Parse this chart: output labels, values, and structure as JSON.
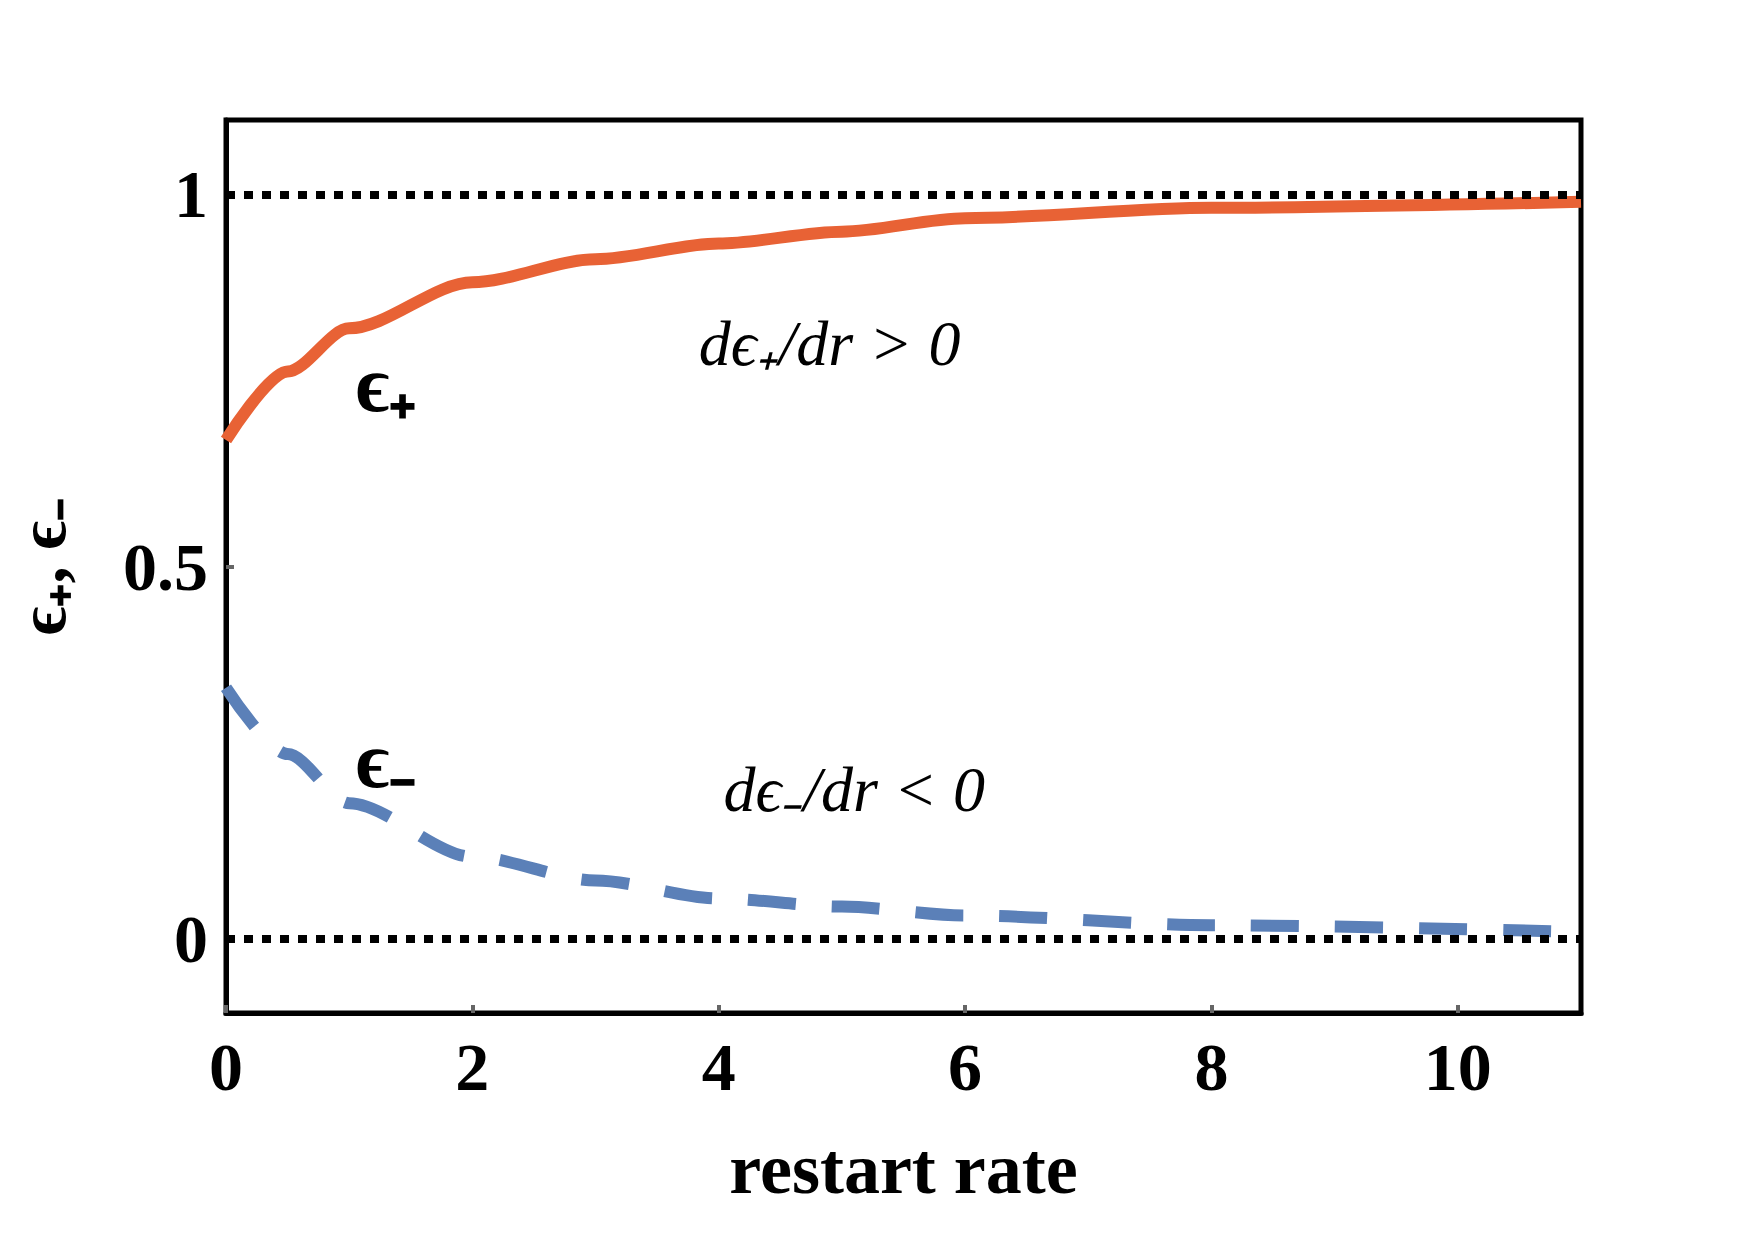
{
  "chart_data": {
    "type": "line",
    "xlabel": "restart rate",
    "ylabel": "ϵ₊, ϵ₋",
    "x": [
      0,
      0.5,
      1,
      2,
      3,
      4,
      5,
      6,
      8,
      11
    ],
    "series": [
      {
        "name": "ϵ₊",
        "color": "#e86235",
        "line_style": "solid",
        "values": [
          0.67,
          0.762,
          0.82,
          0.882,
          0.913,
          0.934,
          0.95,
          0.968,
          0.982,
          0.99
        ]
      },
      {
        "name": "ϵ₋",
        "color": "#5b80b8",
        "line_style": "dashed",
        "values": [
          0.337,
          0.248,
          0.182,
          0.11,
          0.078,
          0.054,
          0.043,
          0.031,
          0.018,
          0.009
        ]
      }
    ],
    "xlim": [
      0,
      11
    ],
    "xticks": [
      0,
      2,
      4,
      6,
      8,
      10
    ],
    "ylim": [
      -0.1,
      1.1
    ],
    "yticks": [
      0,
      0.5,
      1
    ],
    "ref_lines": [
      {
        "axis": "y",
        "value": 1,
        "color": "#000000",
        "line_style": "dotted"
      },
      {
        "axis": "y",
        "value": 0,
        "color": "#000000",
        "line_style": "dotted"
      }
    ],
    "annotations": [
      "dϵ₊/dr > 0",
      "dϵ₋/dr < 0"
    ],
    "grid": false,
    "legend": false,
    "marker": "none"
  }
}
